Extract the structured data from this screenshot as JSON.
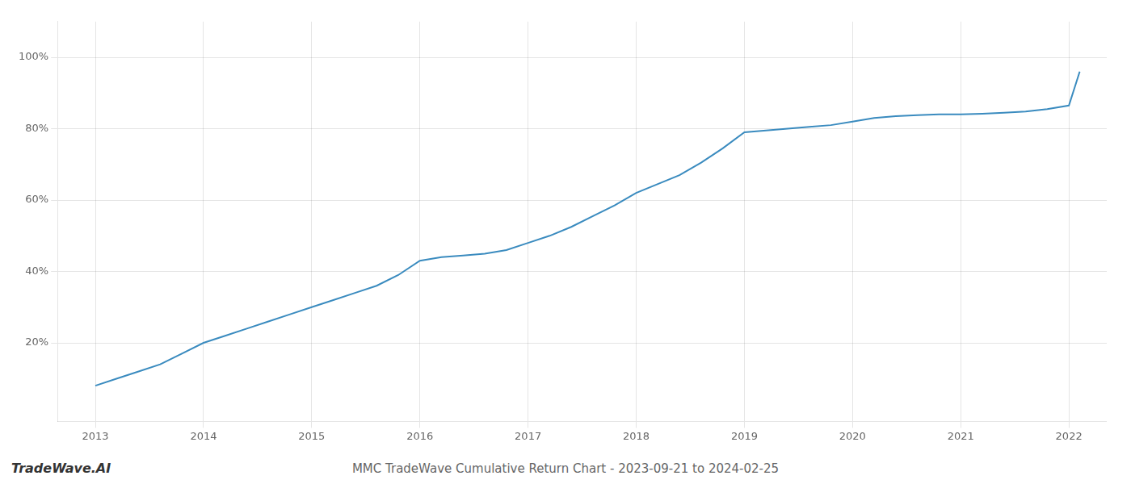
{
  "chart_data": {
    "type": "line",
    "title": "MMC TradeWave Cumulative Return Chart - 2023-09-21 to 2024-02-25",
    "annotations": [
      "TradeWave.AI"
    ],
    "x": [
      2013.0,
      2013.2,
      2013.4,
      2013.6,
      2013.8,
      2014.0,
      2014.2,
      2014.4,
      2014.6,
      2014.8,
      2015.0,
      2015.2,
      2015.4,
      2015.6,
      2015.8,
      2016.0,
      2016.2,
      2016.4,
      2016.6,
      2016.8,
      2017.0,
      2017.2,
      2017.4,
      2017.6,
      2017.8,
      2018.0,
      2018.2,
      2018.4,
      2018.6,
      2018.8,
      2019.0,
      2019.2,
      2019.4,
      2019.6,
      2019.8,
      2020.0,
      2020.2,
      2020.4,
      2020.6,
      2020.8,
      2021.0,
      2021.2,
      2021.4,
      2021.6,
      2021.8,
      2022.0,
      2022.1
    ],
    "values": [
      0.08,
      0.1,
      0.12,
      0.14,
      0.17,
      0.2,
      0.22,
      0.24,
      0.26,
      0.28,
      0.3,
      0.32,
      0.34,
      0.36,
      0.39,
      0.43,
      0.44,
      0.445,
      0.45,
      0.46,
      0.48,
      0.5,
      0.525,
      0.555,
      0.585,
      0.62,
      0.645,
      0.67,
      0.705,
      0.745,
      0.79,
      0.795,
      0.8,
      0.805,
      0.81,
      0.82,
      0.83,
      0.835,
      0.838,
      0.84,
      0.84,
      0.842,
      0.845,
      0.848,
      0.855,
      0.865,
      0.96
    ],
    "color": "#3a8bbf",
    "xlim": [
      2012.65,
      2022.35
    ],
    "ylim": [
      -0.02,
      1.1
    ],
    "xticks": [
      2013,
      2014,
      2015,
      2016,
      2017,
      2018,
      2019,
      2020,
      2021,
      2022
    ],
    "yticks": [
      {
        "value": 0.2,
        "label": "20%"
      },
      {
        "value": 0.4,
        "label": "40%"
      },
      {
        "value": 0.6,
        "label": "60%"
      },
      {
        "value": 0.8,
        "label": "80%"
      },
      {
        "value": 1.0,
        "label": "100%"
      }
    ],
    "grid": true
  }
}
